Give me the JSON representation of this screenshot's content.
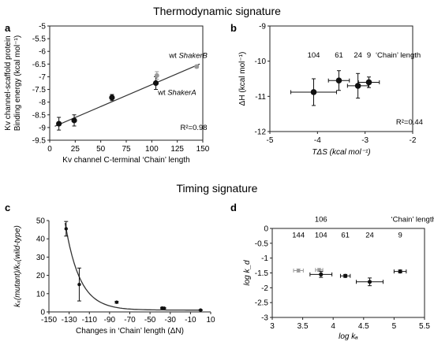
{
  "titles": {
    "top": "Thermodynamic signature",
    "bottom": "Timing signature"
  },
  "colors": {
    "black_point": "#111111",
    "grey_point": "#999999",
    "line": "#333333"
  },
  "chart_data": [
    {
      "panel": "a",
      "type": "scatter",
      "title": "",
      "xlabel": "Kv channel C-terminal ‘Chain’ length",
      "ylabel_lines": [
        "Kv channel-scaffold protein",
        "Binding energy (kcal mol⁻¹)"
      ],
      "xlim": [
        0,
        150
      ],
      "ylim": [
        -9.5,
        -5
      ],
      "x_ticks": [
        0,
        25,
        50,
        75,
        100,
        125,
        150
      ],
      "y_ticks": [
        -5,
        -5.5,
        -6,
        -6.5,
        -7,
        -7.5,
        -8,
        -8.5,
        -9,
        -9.5
      ],
      "y_tick_labels": [
        "-5",
        "-5.5",
        "-6",
        "-6.5",
        "-7",
        "-7.5",
        "-8",
        "-8.5",
        "-9",
        "-9.5"
      ],
      "series": [
        {
          "color": "black",
          "points": [
            {
              "x": 9,
              "y": -8.85,
              "err": 0.25
            },
            {
              "x": 24,
              "y": -8.72,
              "err": 0.22
            },
            {
              "x": 61,
              "y": -7.82,
              "err": 0.12
            },
            {
              "x": 104,
              "y": -7.25,
              "err": 0.25
            }
          ]
        },
        {
          "color": "grey",
          "points": [
            {
              "x": 105,
              "y": -6.95,
              "err": 0.15
            },
            {
              "x": 144,
              "y": -6.6,
              "err": 0.05
            }
          ]
        }
      ],
      "fit_line": {
        "x": [
          5,
          147
        ],
        "y": [
          -8.95,
          -6.5
        ]
      },
      "annotations": [
        {
          "text": "wt ShakerB",
          "prefix": "wt ",
          "italic": "ShakerB",
          "x": 117,
          "y": -6.25
        },
        {
          "text": "wt ShakerA",
          "prefix": "wt ",
          "italic": "ShakerA",
          "x": 106,
          "y": -7.72
        },
        {
          "text": "R²=0.98",
          "x": 128,
          "y": -9.1
        }
      ]
    },
    {
      "panel": "b",
      "type": "scatter",
      "title": "",
      "xlabel": "TΔS (kcal mol⁻¹)",
      "ylabel": "ΔH (kcal mol⁻¹)",
      "xlim": [
        -5,
        -2
      ],
      "ylim": [
        -12,
        -9
      ],
      "x_ticks": [
        -5,
        -4,
        -3,
        -2
      ],
      "y_ticks": [
        -9,
        -10,
        -11,
        -12
      ],
      "points": [
        {
          "x": -4.08,
          "y": -10.88,
          "xerr": 0.48,
          "yerr": 0.38
        },
        {
          "x": -3.55,
          "y": -10.55,
          "xerr": 0.22,
          "yerr": 0.28
        },
        {
          "x": -3.15,
          "y": -10.7,
          "xerr": 0.22,
          "yerr": 0.35
        },
        {
          "x": -2.92,
          "y": -10.6,
          "xerr": 0.22,
          "yerr": 0.15
        }
      ],
      "chain_labels": [
        {
          "text": "104",
          "x": -4.08
        },
        {
          "text": "61",
          "x": -3.55
        },
        {
          "text": "24",
          "x": -3.15
        },
        {
          "text": "9",
          "x": -2.92
        }
      ],
      "chain_label_y": -9.9,
      "chain_legend": "‘Chain’ length",
      "annotations": [
        {
          "text": "R²=0.44",
          "x": -2.35,
          "y": -11.8
        }
      ]
    },
    {
      "panel": "c",
      "type": "scatter",
      "title": "",
      "xlabel": "Changes in ‘Chain’ length (ΔN)",
      "ylabel": "kₓ(mutant)/kₓ(wild-type)",
      "xlim": [
        -150,
        10
      ],
      "ylim": [
        0,
        50
      ],
      "x_ticks": [
        -150,
        -130,
        -110,
        -90,
        -70,
        -50,
        -30,
        -10,
        10
      ],
      "y_ticks": [
        0,
        10,
        20,
        30,
        40,
        50
      ],
      "points": [
        {
          "x": -133,
          "y": 45.5,
          "err": 4
        },
        {
          "x": -120,
          "y": 15,
          "err": 9
        },
        {
          "x": -83,
          "y": 5.3,
          "err": 0.5
        },
        {
          "x": -38,
          "y": 2.1,
          "err": 0.4
        },
        {
          "x": -36,
          "y": 2.0,
          "err": 0.3
        },
        {
          "x": 0,
          "y": 1.0,
          "err": 0.2
        }
      ],
      "fit_curve": {
        "x_from": -134,
        "x_to": 2
      }
    },
    {
      "panel": "d",
      "type": "scatter",
      "title": "",
      "xlabel": "log kₐ",
      "ylabel": "log k_d",
      "xlim": [
        3,
        5.5
      ],
      "ylim": [
        -3,
        0
      ],
      "x_ticks": [
        3,
        3.5,
        4,
        4.5,
        5,
        5.5
      ],
      "y_ticks": [
        0,
        -0.5,
        -1,
        -1.5,
        -2,
        -2.5,
        -3
      ],
      "points_black": [
        {
          "x": 3.8,
          "y": -1.55,
          "xerr": 0.18,
          "yerr": 0.1
        },
        {
          "x": 4.2,
          "y": -1.6,
          "xerr": 0.08,
          "yerr": 0.05
        },
        {
          "x": 4.6,
          "y": -1.8,
          "xerr": 0.22,
          "yerr": 0.13
        },
        {
          "x": 5.1,
          "y": -1.45,
          "xerr": 0.1,
          "yerr": 0.05
        }
      ],
      "points_grey": [
        {
          "x": 3.43,
          "y": -1.42,
          "xerr": 0.08,
          "yerr": 0.05
        },
        {
          "x": 3.77,
          "y": -1.4,
          "xerr": 0.06,
          "yerr": 0.05
        }
      ],
      "chain_labels": [
        {
          "text": "144",
          "x": 3.43
        },
        {
          "text": "104",
          "x": 3.8
        },
        {
          "text": "61",
          "x": 4.2
        },
        {
          "text": "24",
          "x": 4.6
        },
        {
          "text": "9",
          "x": 5.1
        }
      ],
      "chain_label_y": -0.3,
      "extra_label": {
        "text": "106",
        "x": 3.8,
        "y": 0.22
      },
      "chain_legend": "‘Chain’ length"
    }
  ]
}
